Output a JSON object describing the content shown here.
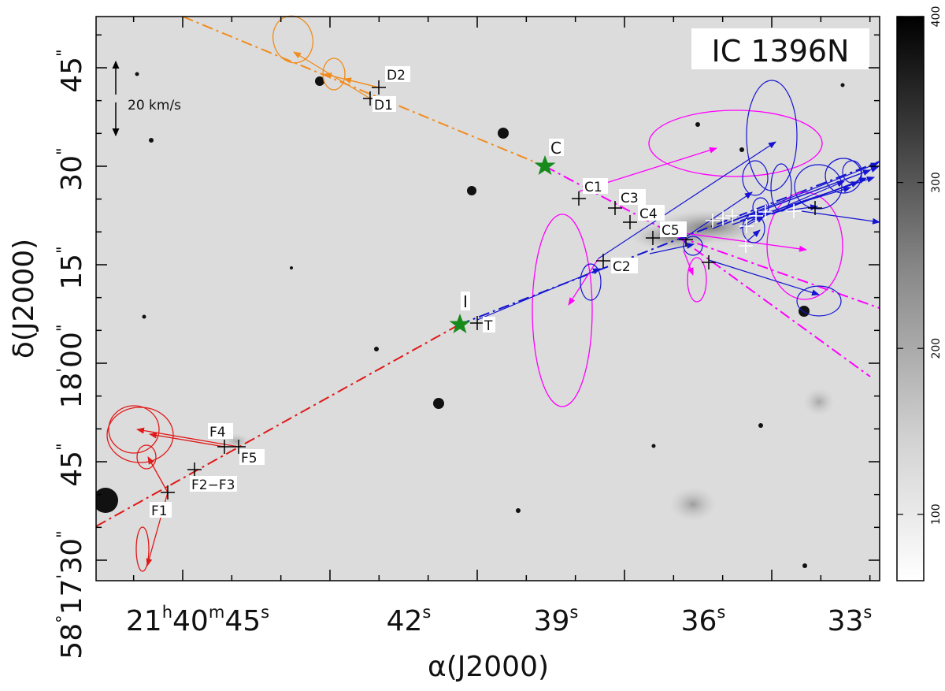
{
  "chart_data": {
    "type": "scatter",
    "title": "IC 1396N",
    "xlabel": "α(J2000)",
    "ylabel": "δ(J2000)",
    "x_ticks": [
      {
        "h": "21",
        "m": "40",
        "s": "45"
      },
      {
        "s": "42"
      },
      {
        "s": "39"
      },
      {
        "s": "36"
      },
      {
        "s": "33"
      }
    ],
    "y_ticks": [
      {
        "sec": "45"
      },
      {
        "sec": "30"
      },
      {
        "sec": "15"
      },
      {
        "min": "18",
        "sec": "00"
      },
      {
        "sec": "45"
      },
      {
        "deg": "58",
        "min": "17",
        "sec": "30"
      }
    ],
    "colorbar": {
      "ticks": [
        "100",
        "200",
        "300",
        "400"
      ],
      "range": [
        60,
        400
      ]
    },
    "scale_bar": {
      "label": "20 km/s"
    },
    "sources": [
      {
        "name": "C",
        "kind": "star",
        "color": "#178a1c"
      },
      {
        "name": "I",
        "kind": "star",
        "color": "#178a1c"
      },
      {
        "name": "T",
        "kind": "cross"
      },
      {
        "name": "D1",
        "kind": "cross"
      },
      {
        "name": "D2",
        "kind": "cross"
      },
      {
        "name": "C1",
        "kind": "cross"
      },
      {
        "name": "C2",
        "kind": "cross"
      },
      {
        "name": "C3",
        "kind": "cross"
      },
      {
        "name": "C4",
        "kind": "cross"
      },
      {
        "name": "C5",
        "kind": "cross"
      },
      {
        "name": "F1",
        "kind": "cross"
      },
      {
        "name": "F2−F3",
        "kind": "cross"
      },
      {
        "name": "F4",
        "kind": "cross"
      },
      {
        "name": "F5",
        "kind": "cross"
      }
    ],
    "series": [
      {
        "name": "D group (orange)",
        "color": "#f08c1e"
      },
      {
        "name": "C group (magenta)",
        "color": "#ff00ff"
      },
      {
        "name": "C group (blue)",
        "color": "#1414d2"
      },
      {
        "name": "F group (red)",
        "color": "#e01818"
      }
    ]
  }
}
